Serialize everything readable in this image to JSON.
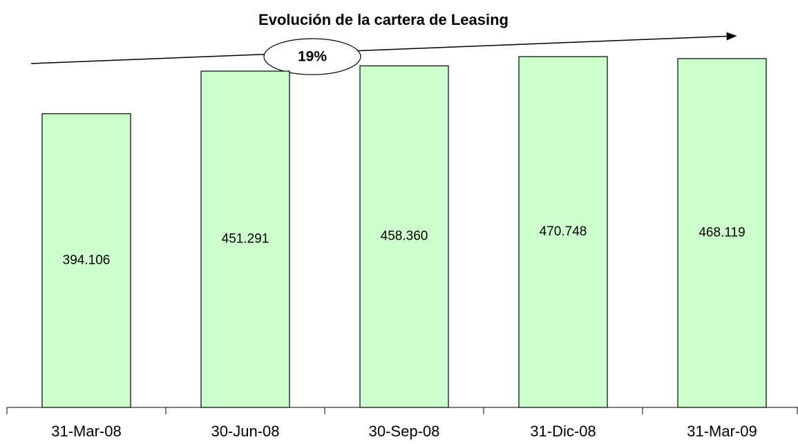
{
  "chart_data": {
    "type": "bar",
    "title": "Evolución de la cartera de Leasing",
    "categories": [
      "31-Mar-08",
      "30-Jun-08",
      "30-Sep-08",
      "31-Dic-08",
      "31-Mar-09"
    ],
    "values": [
      394106,
      451291,
      458360,
      470748,
      468119
    ],
    "value_labels": [
      "394.106",
      "451.291",
      "458.360",
      "470.748",
      "468.119"
    ],
    "color": "#ccffcc",
    "annotation": "19%"
  }
}
